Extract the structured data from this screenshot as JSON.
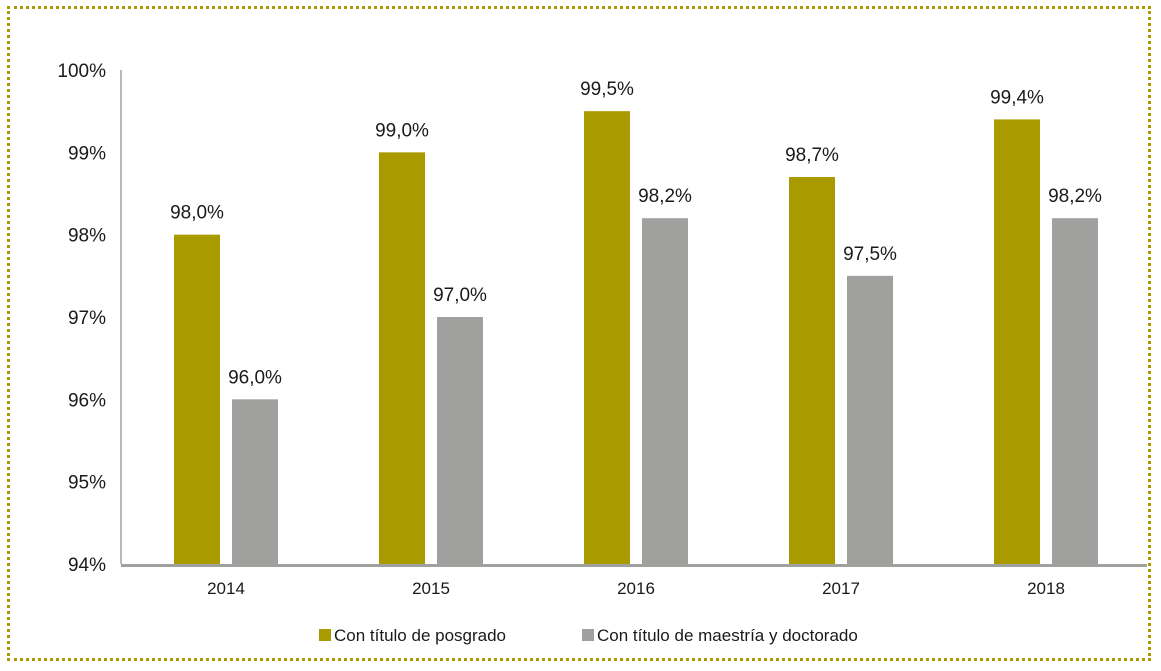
{
  "chart_data": {
    "type": "bar",
    "categories": [
      "2014",
      "2015",
      "2016",
      "2017",
      "2018"
    ],
    "series": [
      {
        "name": "Con título de posgrado",
        "color": "#a99a00",
        "values": [
          98.0,
          99.0,
          99.5,
          98.7,
          99.4
        ],
        "labels": [
          "98,0%",
          "99,0%",
          "99,5%",
          "98,7%",
          "99,4%"
        ]
      },
      {
        "name": "Con título de maestría y doctorado",
        "color": "#a0a09f",
        "values": [
          96.0,
          97.0,
          98.2,
          97.5,
          98.2
        ],
        "labels": [
          "96,0%",
          "97,0%",
          "98,2%",
          "97,5%",
          "98,2%"
        ]
      }
    ],
    "yticks": [
      "94%",
      "95%",
      "96%",
      "97%",
      "98%",
      "99%",
      "100%"
    ],
    "ylim": [
      94,
      100
    ],
    "title": "",
    "xlabel": "",
    "ylabel": "",
    "legend_position": "bottom",
    "grid": false
  },
  "colors": {
    "frame": "#aa9a00",
    "axis": "#a0a09f"
  }
}
